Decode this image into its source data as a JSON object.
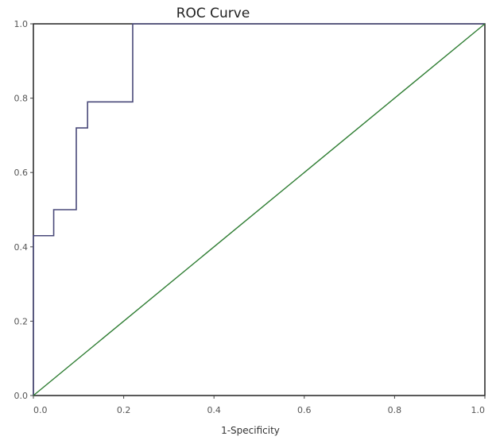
{
  "chart_data": {
    "type": "line",
    "title": "ROC Curve",
    "xlabel": "1-Specificity",
    "ylabel": "",
    "xlim": [
      0,
      1
    ],
    "ylim": [
      0,
      1
    ],
    "grid": false,
    "x_ticks": [
      {
        "value": 0.0,
        "label": "0.0"
      },
      {
        "value": 0.2,
        "label": "0.2"
      },
      {
        "value": 0.4,
        "label": "0.4"
      },
      {
        "value": 0.6,
        "label": "0.6"
      },
      {
        "value": 0.8,
        "label": "0.8"
      },
      {
        "value": 1.0,
        "label": "1.0"
      }
    ],
    "y_ticks": [
      {
        "value": 0.0,
        "label": "0.0"
      },
      {
        "value": 0.2,
        "label": "0.2"
      },
      {
        "value": 0.4,
        "label": "0.4"
      },
      {
        "value": 0.6,
        "label": "0.6"
      },
      {
        "value": 0.8,
        "label": "0.8"
      },
      {
        "value": 1.0,
        "label": "1.0"
      }
    ],
    "series": [
      {
        "color": "#4a4a7a",
        "interpolation": "step",
        "x": [
          0.0,
          0.0,
          0.045,
          0.045,
          0.095,
          0.095,
          0.12,
          0.12,
          0.22,
          0.22,
          1.0
        ],
        "y": [
          0.0,
          0.43,
          0.43,
          0.5,
          0.5,
          0.72,
          0.72,
          0.79,
          0.79,
          1.0,
          1.0
        ]
      },
      {
        "color": "#2e7d32",
        "interpolation": "linear",
        "x": [
          0.0,
          1.0
        ],
        "y": [
          0.0,
          1.0
        ]
      }
    ]
  }
}
